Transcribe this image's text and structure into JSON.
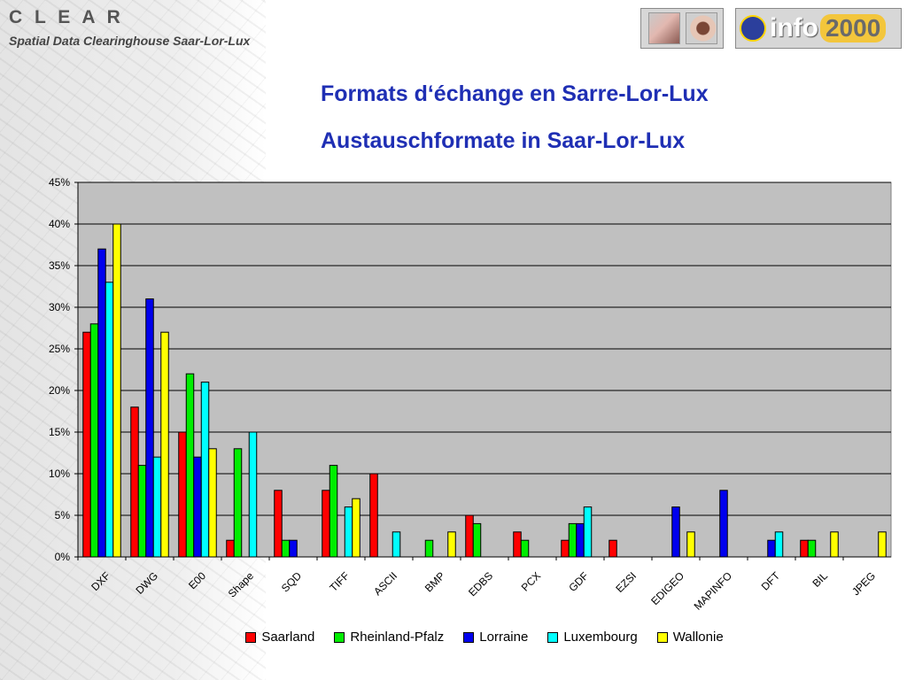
{
  "header": {
    "brand": "C L E A R",
    "brand_sub": "Spatial Data Clearinghouse Saar-Lor-Lux",
    "logo_info": "info",
    "logo_year": "2000"
  },
  "chart_data": {
    "type": "bar",
    "title": "Formats d‘échange en Sarre-Lor-Lux",
    "subtitle": "Austauschformate in Saar-Lor-Lux",
    "xlabel": "",
    "ylabel": "",
    "ylim": [
      0,
      45
    ],
    "yticks": [
      "0%",
      "5%",
      "10%",
      "15%",
      "20%",
      "25%",
      "30%",
      "35%",
      "40%",
      "45%"
    ],
    "grid": true,
    "legend_position": "bottom",
    "categories": [
      "DXF",
      "DWG",
      "E00",
      "Shape",
      "SQD",
      "TIFF",
      "ASCII",
      "BMP",
      "EDBS",
      "PCX",
      "GDF",
      "EZSI",
      "EDIGEO",
      "MAPINFO",
      "DFT",
      "BIL",
      "JPEG"
    ],
    "series": [
      {
        "name": "Saarland",
        "color": "#ff0000",
        "values": [
          27,
          18,
          15,
          2,
          8,
          8,
          10,
          0,
          5,
          3,
          2,
          2,
          0,
          0,
          0,
          2,
          0
        ]
      },
      {
        "name": "Rheinland-Pfalz",
        "color": "#00ee00",
        "values": [
          28,
          11,
          22,
          13,
          2,
          11,
          0,
          2,
          4,
          2,
          4,
          0,
          0,
          0,
          0,
          2,
          0
        ]
      },
      {
        "name": "Lorraine",
        "color": "#0000ee",
        "values": [
          37,
          31,
          12,
          0,
          2,
          0,
          0,
          0,
          0,
          0,
          4,
          0,
          6,
          8,
          2,
          0,
          0
        ]
      },
      {
        "name": "Luxembourg",
        "color": "#00ffff",
        "values": [
          33,
          12,
          21,
          15,
          0,
          6,
          3,
          0,
          0,
          0,
          6,
          0,
          0,
          0,
          3,
          0,
          0
        ]
      },
      {
        "name": "Wallonie",
        "color": "#ffff00",
        "values": [
          40,
          27,
          13,
          0,
          0,
          7,
          0,
          3,
          0,
          0,
          0,
          0,
          3,
          0,
          0,
          3,
          3
        ]
      }
    ]
  }
}
